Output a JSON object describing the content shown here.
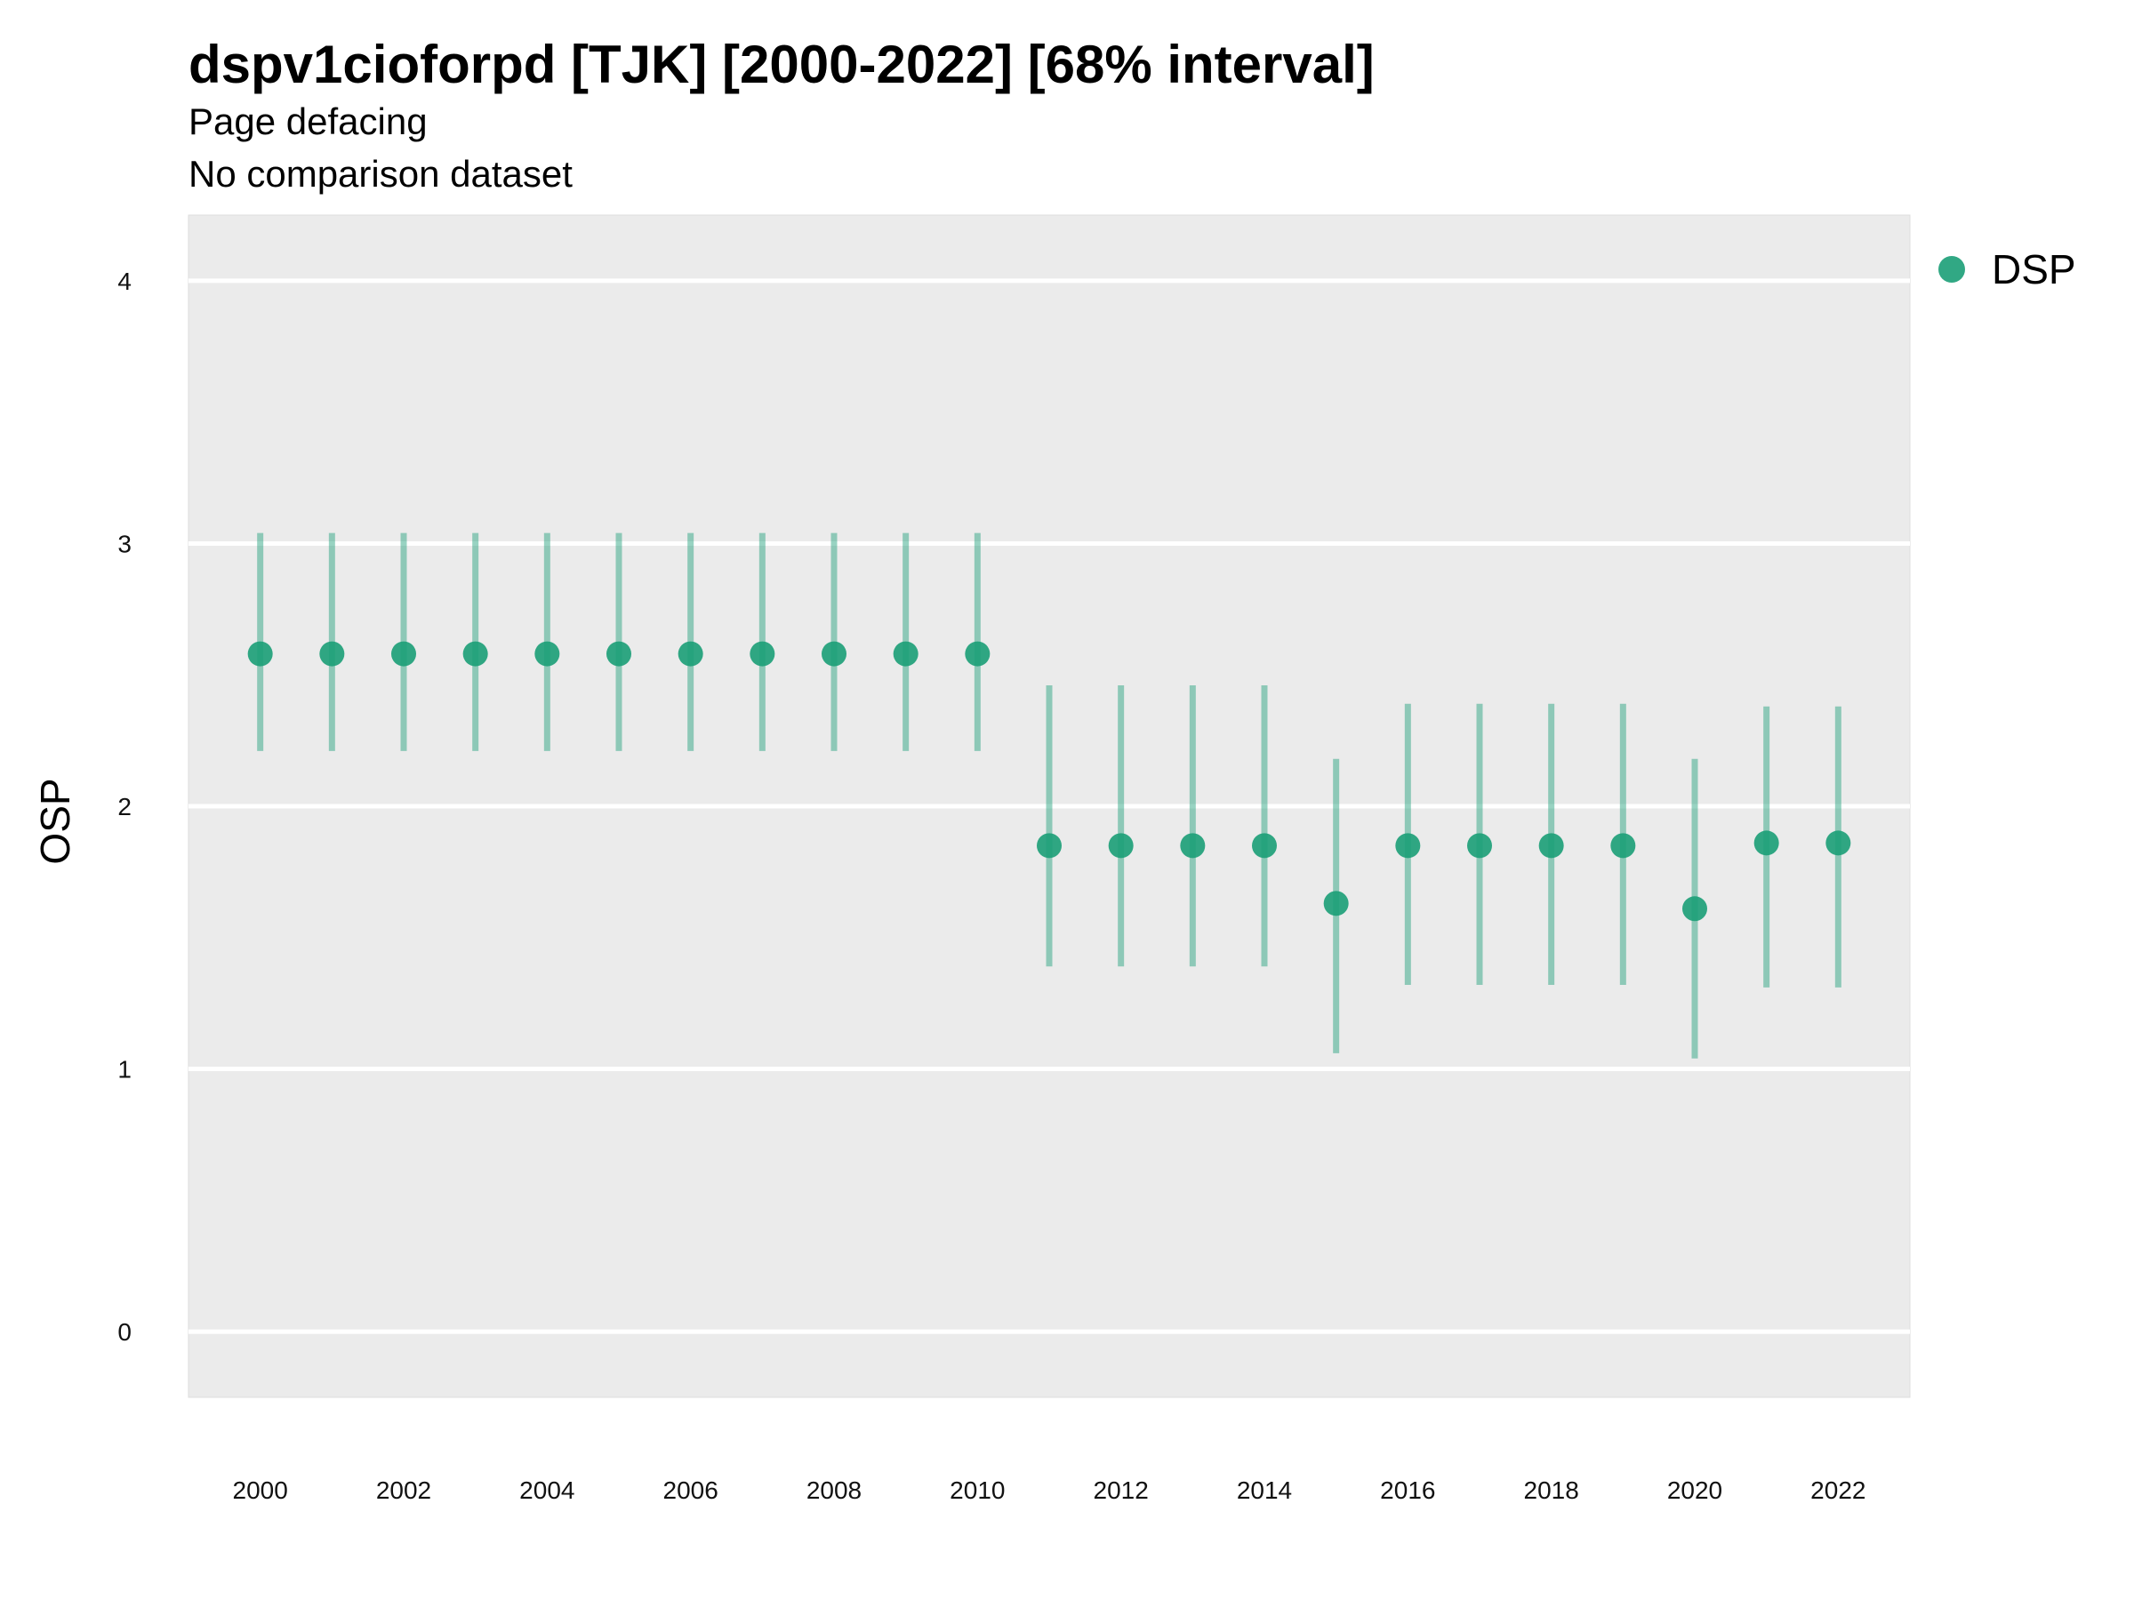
{
  "chart_data": {
    "type": "scatter",
    "title": "dspv1cioforpd [TJK] [2000-2022] [68% interval]",
    "subtitles": [
      "Page defacing",
      "No comparison dataset"
    ],
    "ylabel": "OSP",
    "xlabel": "",
    "ylim": [
      -0.25,
      4.25
    ],
    "yticks": [
      0,
      1,
      2,
      3,
      4
    ],
    "xticks": [
      2000,
      2002,
      2004,
      2006,
      2008,
      2010,
      2012,
      2014,
      2016,
      2018,
      2020,
      2022
    ],
    "xlim": [
      1999,
      2023
    ],
    "grid": true,
    "legend_position": "right",
    "series": [
      {
        "name": "DSP",
        "color": "#1b9e77",
        "x": [
          2000,
          2001,
          2002,
          2003,
          2004,
          2005,
          2006,
          2007,
          2008,
          2009,
          2010,
          2011,
          2012,
          2013,
          2014,
          2015,
          2016,
          2017,
          2018,
          2019,
          2020,
          2021,
          2022
        ],
        "y": [
          2.58,
          2.58,
          2.58,
          2.58,
          2.58,
          2.58,
          2.58,
          2.58,
          2.58,
          2.58,
          2.58,
          1.85,
          1.85,
          1.85,
          1.85,
          1.63,
          1.85,
          1.85,
          1.85,
          1.85,
          1.61,
          1.86,
          1.86
        ],
        "lower": [
          2.21,
          2.21,
          2.21,
          2.21,
          2.21,
          2.21,
          2.21,
          2.21,
          2.21,
          2.21,
          2.21,
          1.39,
          1.39,
          1.39,
          1.39,
          1.06,
          1.32,
          1.32,
          1.32,
          1.32,
          1.04,
          1.31,
          1.31
        ],
        "upper": [
          3.04,
          3.04,
          3.04,
          3.04,
          3.04,
          3.04,
          3.04,
          3.04,
          3.04,
          3.04,
          3.04,
          2.46,
          2.46,
          2.46,
          2.46,
          2.18,
          2.39,
          2.39,
          2.39,
          2.39,
          2.18,
          2.38,
          2.38
        ]
      }
    ]
  }
}
